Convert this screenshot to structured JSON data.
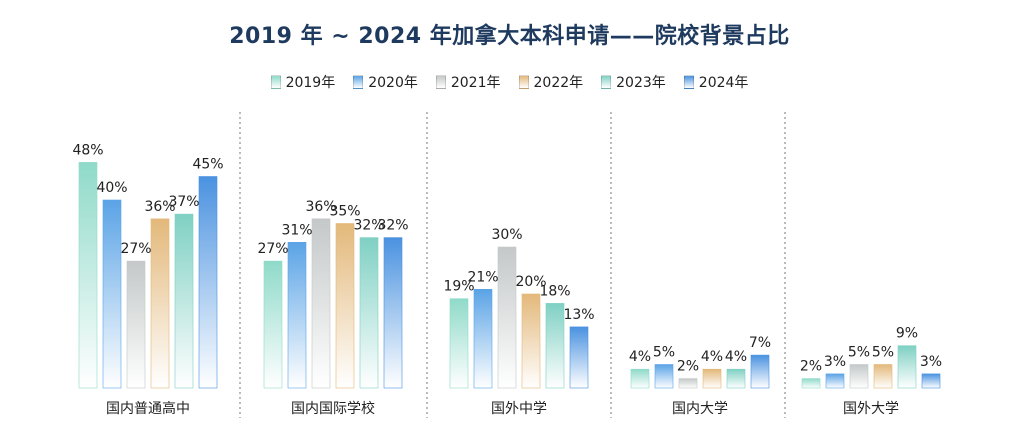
{
  "chart_data": {
    "type": "bar",
    "title": "2019 年 ~ 2024 年加拿大本科申请——院校背景占比",
    "categories": [
      "国内普通高中",
      "国内国际学校",
      "国外中学",
      "国内大学",
      "国外大学"
    ],
    "series": [
      {
        "name": "2019年",
        "values": [
          48,
          27,
          19,
          4,
          2
        ],
        "color": "#8fdac9"
      },
      {
        "name": "2020年",
        "values": [
          40,
          31,
          21,
          5,
          3
        ],
        "color": "#5aa3e6"
      },
      {
        "name": "2021年",
        "values": [
          27,
          36,
          30,
          2,
          5
        ],
        "color": "#c4c8c8"
      },
      {
        "name": "2022年",
        "values": [
          36,
          35,
          20,
          4,
          5
        ],
        "color": "#e3b87a"
      },
      {
        "name": "2023年",
        "values": [
          37,
          32,
          18,
          4,
          9
        ],
        "color": "#7fd0c3"
      },
      {
        "name": "2024年",
        "values": [
          45,
          32,
          13,
          7,
          3
        ],
        "color": "#4a92e0"
      }
    ],
    "value_labels": [
      [
        "48%",
        "27%",
        "19%",
        "4%",
        "2%"
      ],
      [
        "40%",
        "31%",
        "21%",
        "5%",
        "3%"
      ],
      [
        "27%",
        "36%",
        "30%",
        "2%",
        "5%"
      ],
      [
        "36%",
        "35%",
        "20%",
        "4%",
        "5%"
      ],
      [
        "37%",
        "32%",
        "18%",
        "4%",
        "9%"
      ],
      [
        "45%",
        "32%",
        "13%",
        "7%",
        "3%"
      ]
    ],
    "ylim": [
      0,
      50
    ],
    "legend_position": "top-center",
    "grid": false
  }
}
